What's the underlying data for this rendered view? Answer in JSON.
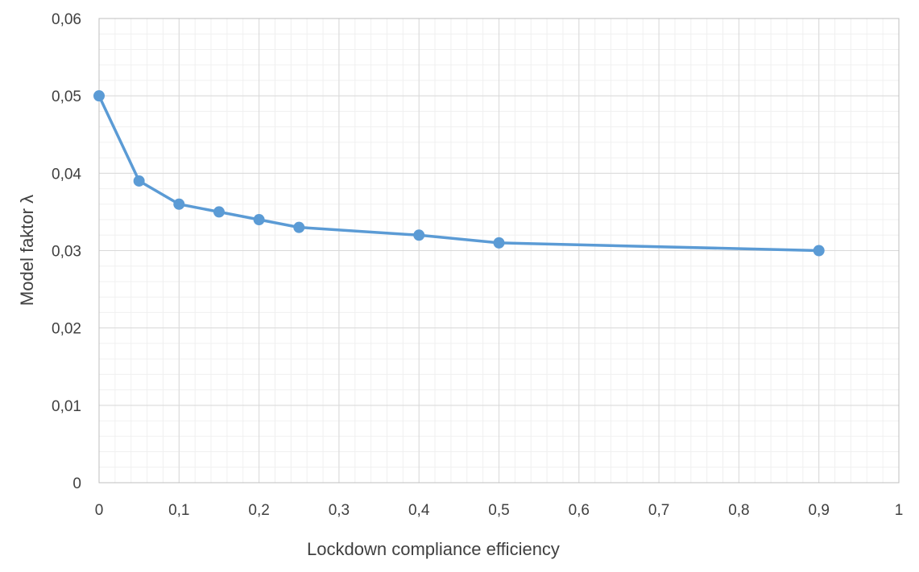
{
  "chart_data": {
    "type": "line",
    "title": "",
    "xlabel": "Lockdown compliance efficiency",
    "ylabel": "Model faktor λ",
    "xlim": [
      0,
      1
    ],
    "ylim": [
      0,
      0.06
    ],
    "x_ticks": [
      0,
      0.1,
      0.2,
      0.3,
      0.4,
      0.5,
      0.6,
      0.7,
      0.8,
      0.9,
      1
    ],
    "x_tick_labels": [
      "0",
      "0,1",
      "0,2",
      "0,3",
      "0,4",
      "0,5",
      "0,6",
      "0,7",
      "0,8",
      "0,9",
      "1"
    ],
    "y_ticks": [
      0,
      0.01,
      0.02,
      0.03,
      0.04,
      0.05,
      0.06
    ],
    "y_tick_labels": [
      "0",
      "0,01",
      "0,02",
      "0,03",
      "0,04",
      "0,05",
      "0,06"
    ],
    "grid": true,
    "legend": "none",
    "series": [
      {
        "color": "#5b9bd5",
        "marker": "circle",
        "x": [
          0,
          0.05,
          0.1,
          0.15,
          0.2,
          0.25,
          0.4,
          0.5,
          0.9
        ],
        "y": [
          0.05,
          0.039,
          0.036,
          0.035,
          0.034,
          0.033,
          0.032,
          0.031,
          0.03
        ]
      }
    ]
  }
}
